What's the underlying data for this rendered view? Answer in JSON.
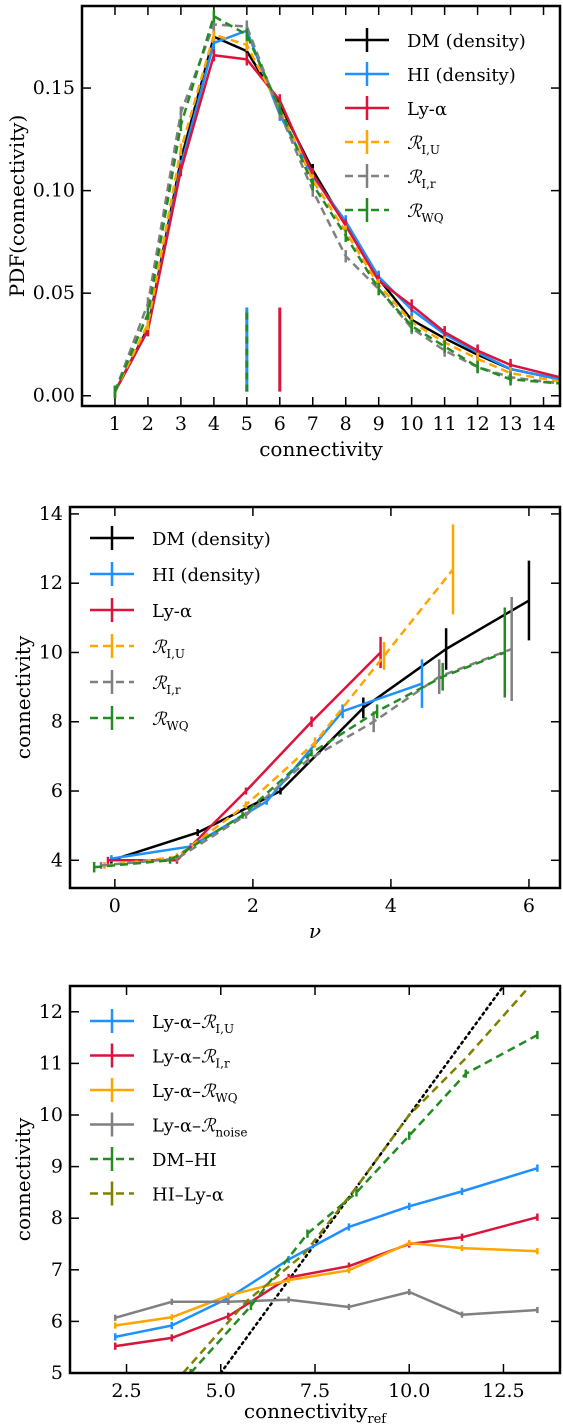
{
  "chart_data": [
    {
      "type": "line",
      "xlabel": "connectivity",
      "ylabel": "PDF(connectivity)",
      "xlim": [
        0,
        14.5
      ],
      "ylim": [
        -0.005,
        0.19
      ],
      "xticks": [
        1,
        2,
        3,
        4,
        5,
        6,
        7,
        8,
        9,
        10,
        11,
        12,
        13,
        14
      ],
      "xtick_labels": [
        "1",
        "2",
        "3",
        "4",
        "5",
        "6",
        "7",
        "8",
        "9",
        "10",
        "11",
        "12",
        "13",
        "14"
      ],
      "yticks": [
        0.0,
        0.05,
        0.1,
        0.15
      ],
      "ytick_labels": [
        "0.00",
        "0.05",
        "0.10",
        "0.15"
      ],
      "legend": "top-right",
      "x": [
        1,
        2,
        3,
        4,
        5,
        6,
        7,
        8,
        9,
        10,
        11,
        12,
        13,
        14.5
      ],
      "series": [
        {
          "name": "DM (density)",
          "color": "#000000",
          "dashed": false,
          "values": [
            0.002,
            0.033,
            0.115,
            0.175,
            0.168,
            0.142,
            0.11,
            0.083,
            0.057,
            0.037,
            0.028,
            0.02,
            0.013,
            0.008
          ],
          "yerr": 0.003
        },
        {
          "name": "HI (density)",
          "color": "#1e90ff",
          "dashed": false,
          "values": [
            0.002,
            0.032,
            0.112,
            0.172,
            0.178,
            0.137,
            0.107,
            0.085,
            0.058,
            0.042,
            0.03,
            0.021,
            0.013,
            0.008
          ],
          "yerr": 0.003
        },
        {
          "name": "Ly-α",
          "color": "#dc143c",
          "dashed": false,
          "values": [
            0.002,
            0.032,
            0.11,
            0.166,
            0.164,
            0.144,
            0.108,
            0.083,
            0.056,
            0.044,
            0.031,
            0.022,
            0.015,
            0.009
          ],
          "yerr": 0.003
        },
        {
          "name": "ℛI,U",
          "color": "#ffa500",
          "dashed": true,
          "values": [
            0.002,
            0.035,
            0.12,
            0.176,
            0.171,
            0.14,
            0.105,
            0.08,
            0.054,
            0.036,
            0.026,
            0.018,
            0.011,
            0.007
          ],
          "yerr": 0.003
        },
        {
          "name": "ℛI,r",
          "color": "#808080",
          "dashed": true,
          "values": [
            0.002,
            0.045,
            0.138,
            0.181,
            0.18,
            0.138,
            0.1,
            0.068,
            0.052,
            0.033,
            0.022,
            0.014,
            0.009,
            0.006
          ],
          "yerr": 0.003
        },
        {
          "name": "ℛWQ",
          "color": "#228b22",
          "dashed": true,
          "values": [
            0.002,
            0.04,
            0.132,
            0.185,
            0.176,
            0.14,
            0.103,
            0.078,
            0.052,
            0.034,
            0.024,
            0.014,
            0.008,
            0.006
          ],
          "yerr": 0.003
        }
      ],
      "markers": [
        {
          "x": 5,
          "y0": 0.002,
          "y1": 0.043,
          "colors": [
            "#1e90ff",
            "#228b22"
          ]
        },
        {
          "x": 6,
          "y0": 0.002,
          "y1": 0.043,
          "colors": [
            "#dc143c"
          ]
        }
      ]
    },
    {
      "type": "line",
      "xlabel": "ν",
      "ylabel": "connectivity",
      "xlim": [
        -0.65,
        6.45
      ],
      "ylim": [
        3.2,
        14.2
      ],
      "xticks": [
        0,
        2,
        4,
        6
      ],
      "xtick_labels": [
        "0",
        "2",
        "4",
        "6"
      ],
      "yticks": [
        4,
        6,
        8,
        10,
        12,
        14
      ],
      "ytick_labels": [
        "4",
        "6",
        "8",
        "10",
        "12",
        "14"
      ],
      "legend": "top-left",
      "series": [
        {
          "name": "DM (density)",
          "color": "#000000",
          "dashed": false,
          "x": [
            -0.05,
            1.2,
            2.4,
            3.6,
            4.8,
            6.0
          ],
          "values": [
            4.0,
            4.8,
            6.0,
            8.4,
            10.1,
            11.5
          ],
          "yerr": [
            0.1,
            0.1,
            0.1,
            0.3,
            0.6,
            1.15
          ]
        },
        {
          "name": "HI (density)",
          "color": "#1e90ff",
          "dashed": false,
          "x": [
            -0.05,
            1.1,
            2.2,
            3.3,
            4.45
          ],
          "values": [
            4.05,
            4.4,
            5.7,
            8.3,
            9.1
          ],
          "yerr": [
            0.1,
            0.1,
            0.1,
            0.2,
            0.7
          ]
        },
        {
          "name": "Ly-α",
          "color": "#dc143c",
          "dashed": false,
          "x": [
            -0.1,
            0.9,
            1.9,
            2.85,
            3.85
          ],
          "values": [
            4.0,
            4.0,
            6.0,
            8.0,
            10.0
          ],
          "yerr": [
            0.1,
            0.1,
            0.1,
            0.15,
            0.45
          ]
        },
        {
          "name": "ℛI,U",
          "color": "#ffa500",
          "dashed": true,
          "x": [
            -0.15,
            0.9,
            1.9,
            2.9,
            3.9,
            4.9
          ],
          "values": [
            3.85,
            4.1,
            5.6,
            7.4,
            9.9,
            12.4
          ],
          "yerr": [
            0.1,
            0.1,
            0.1,
            0.15,
            0.4,
            1.3
          ]
        },
        {
          "name": "ℛI,r",
          "color": "#808080",
          "dashed": true,
          "x": [
            -0.2,
            0.9,
            1.9,
            2.8,
            3.75,
            4.7,
            5.75
          ],
          "values": [
            3.85,
            4.05,
            5.3,
            6.9,
            8.0,
            9.3,
            10.1
          ],
          "yerr": [
            0.1,
            0.1,
            0.1,
            0.1,
            0.3,
            0.5,
            1.5
          ]
        },
        {
          "name": "ℛWQ",
          "color": "#228b22",
          "dashed": true,
          "x": [
            -0.3,
            0.8,
            1.85,
            2.85,
            3.8,
            4.75,
            5.65
          ],
          "values": [
            3.8,
            4.0,
            5.3,
            7.1,
            8.3,
            9.3,
            10.0
          ],
          "yerr": [
            0.15,
            0.1,
            0.1,
            0.1,
            0.2,
            0.4,
            1.3
          ]
        }
      ]
    },
    {
      "type": "line",
      "xlabel": "connectivityref",
      "ylabel": "connectivity",
      "xlim": [
        1.0,
        14.0
      ],
      "ylim": [
        5.0,
        12.5
      ],
      "xticks": [
        2.5,
        5.0,
        7.5,
        10.0,
        12.5
      ],
      "xtick_labels": [
        "2.5",
        "5.0",
        "7.5",
        "10.0",
        "12.5"
      ],
      "yticks": [
        5,
        6,
        7,
        8,
        9,
        10,
        11,
        12
      ],
      "ytick_labels": [
        "5",
        "6",
        "7",
        "8",
        "9",
        "10",
        "11",
        "12"
      ],
      "legend": "top-left",
      "series": [
        {
          "name": "Ly-α–ℛI,U",
          "color": "#1e90ff",
          "dashed": false,
          "x": [
            2.2,
            3.7,
            5.2,
            6.8,
            8.4,
            10.0,
            11.4,
            13.4
          ],
          "values": [
            5.7,
            5.92,
            6.45,
            7.2,
            7.83,
            8.23,
            8.52,
            8.97
          ],
          "yerr": 0.07
        },
        {
          "name": "Ly-α–ℛI,r",
          "color": "#dc143c",
          "dashed": false,
          "x": [
            2.2,
            3.7,
            5.2,
            6.8,
            8.4,
            10.0,
            11.4,
            13.4
          ],
          "values": [
            5.52,
            5.68,
            6.1,
            6.85,
            7.07,
            7.5,
            7.63,
            8.02
          ],
          "yerr": 0.07
        },
        {
          "name": "Ly-α–ℛWQ",
          "color": "#ffa500",
          "dashed": false,
          "x": [
            2.2,
            3.7,
            5.2,
            6.8,
            8.4,
            10.0,
            11.4,
            13.4
          ],
          "values": [
            5.92,
            6.08,
            6.5,
            6.8,
            6.99,
            7.52,
            7.42,
            7.36
          ],
          "yerr": 0.06
        },
        {
          "name": "Ly-α–ℛnoise",
          "color": "#808080",
          "dashed": false,
          "x": [
            2.2,
            3.7,
            5.2,
            6.8,
            8.4,
            10.0,
            11.4,
            13.4
          ],
          "values": [
            6.07,
            6.38,
            6.38,
            6.42,
            6.28,
            6.57,
            6.13,
            6.22
          ],
          "yerr": 0.06
        },
        {
          "name": "DM–HI",
          "color": "#228b22",
          "dashed": true,
          "x": [
            4.2,
            5.8,
            7.3,
            8.6,
            10.0,
            11.5,
            13.4
          ],
          "values": [
            5.0,
            6.3,
            7.7,
            8.5,
            9.6,
            10.8,
            11.55
          ],
          "yerr": 0.08
        },
        {
          "name": "HI–Ly-α",
          "color": "#808000",
          "dashed": true,
          "x": [
            4.0,
            5.7,
            7.2,
            8.6,
            10.0,
            11.5,
            13.2
          ],
          "values": [
            5.0,
            6.4,
            7.3,
            8.6,
            10.0,
            11.1,
            12.5
          ],
          "yerr": 0.0
        }
      ],
      "reference_line": {
        "color": "#000000",
        "style": "dotted",
        "x": [
          5.0,
          12.6
        ],
        "values": [
          5.0,
          12.6
        ]
      }
    }
  ]
}
